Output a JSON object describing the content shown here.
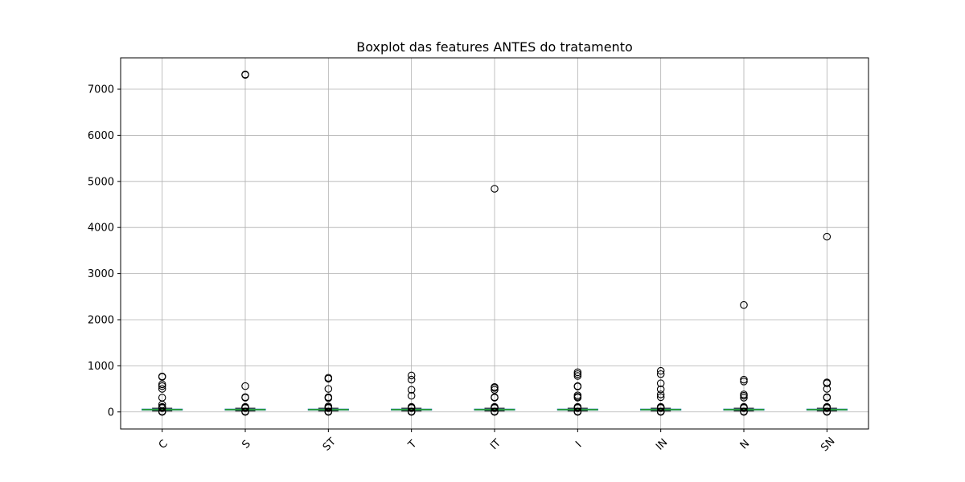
{
  "chart_data": {
    "type": "boxplot",
    "title": "Boxplot das features ANTES do tratamento",
    "xlabel": "",
    "ylabel": "",
    "ylim": [
      -370,
      7680
    ],
    "yticks": [
      0,
      1000,
      2000,
      3000,
      4000,
      5000,
      6000,
      7000
    ],
    "grid": true,
    "x_tick_rotation": 45,
    "colors": {
      "box": "#1f77b4",
      "median": "#2ca02c",
      "outlier": "#000000",
      "grid": "#b0b0b0"
    },
    "categories": [
      "C",
      "S",
      "ST",
      "T",
      "IT",
      "I",
      "IN",
      "N",
      "SN"
    ],
    "boxes": [
      {
        "name": "C",
        "q1": 40,
        "median": 50,
        "q3": 60,
        "whisker_low": 20,
        "whisker_high": 80,
        "outliers": [
          770,
          760,
          600,
          560,
          500,
          310,
          160,
          110,
          100,
          95,
          90,
          85,
          10,
          5,
          0
        ]
      },
      {
        "name": "S",
        "q1": 40,
        "median": 50,
        "q3": 60,
        "whisker_low": 20,
        "whisker_high": 80,
        "outliers": [
          7320,
          7310,
          560,
          320,
          310,
          110,
          100,
          90,
          85,
          10,
          5,
          0
        ]
      },
      {
        "name": "ST",
        "q1": 40,
        "median": 50,
        "q3": 60,
        "whisker_low": 20,
        "whisker_high": 80,
        "outliers": [
          740,
          720,
          500,
          320,
          300,
          120,
          100,
          90,
          85,
          10,
          5,
          0
        ]
      },
      {
        "name": "T",
        "q1": 40,
        "median": 50,
        "q3": 60,
        "whisker_low": 20,
        "whisker_high": 80,
        "outliers": [
          790,
          700,
          480,
          350,
          110,
          100,
          90,
          85,
          10,
          5,
          0
        ]
      },
      {
        "name": "IT",
        "q1": 40,
        "median": 50,
        "q3": 60,
        "whisker_low": 20,
        "whisker_high": 80,
        "outliers": [
          4840,
          540,
          520,
          480,
          320,
          310,
          110,
          100,
          90,
          85,
          10,
          5,
          0
        ]
      },
      {
        "name": "I",
        "q1": 40,
        "median": 50,
        "q3": 60,
        "whisker_low": 20,
        "whisker_high": 80,
        "outliers": [
          860,
          820,
          780,
          560,
          550,
          360,
          330,
          310,
          110,
          100,
          90,
          85,
          10,
          5,
          0
        ]
      },
      {
        "name": "IN",
        "q1": 40,
        "median": 50,
        "q3": 60,
        "whisker_low": 20,
        "whisker_high": 80,
        "outliers": [
          890,
          820,
          620,
          490,
          380,
          320,
          110,
          100,
          90,
          85,
          10,
          5,
          0
        ]
      },
      {
        "name": "N",
        "q1": 40,
        "median": 50,
        "q3": 60,
        "whisker_low": 20,
        "whisker_high": 80,
        "outliers": [
          2320,
          700,
          660,
          380,
          350,
          310,
          110,
          100,
          90,
          85,
          10,
          5,
          0
        ]
      },
      {
        "name": "SN",
        "q1": 40,
        "median": 50,
        "q3": 60,
        "whisker_low": 20,
        "whisker_high": 80,
        "outliers": [
          3800,
          640,
          620,
          500,
          320,
          310,
          110,
          100,
          90,
          85,
          10,
          5,
          0
        ]
      }
    ]
  }
}
